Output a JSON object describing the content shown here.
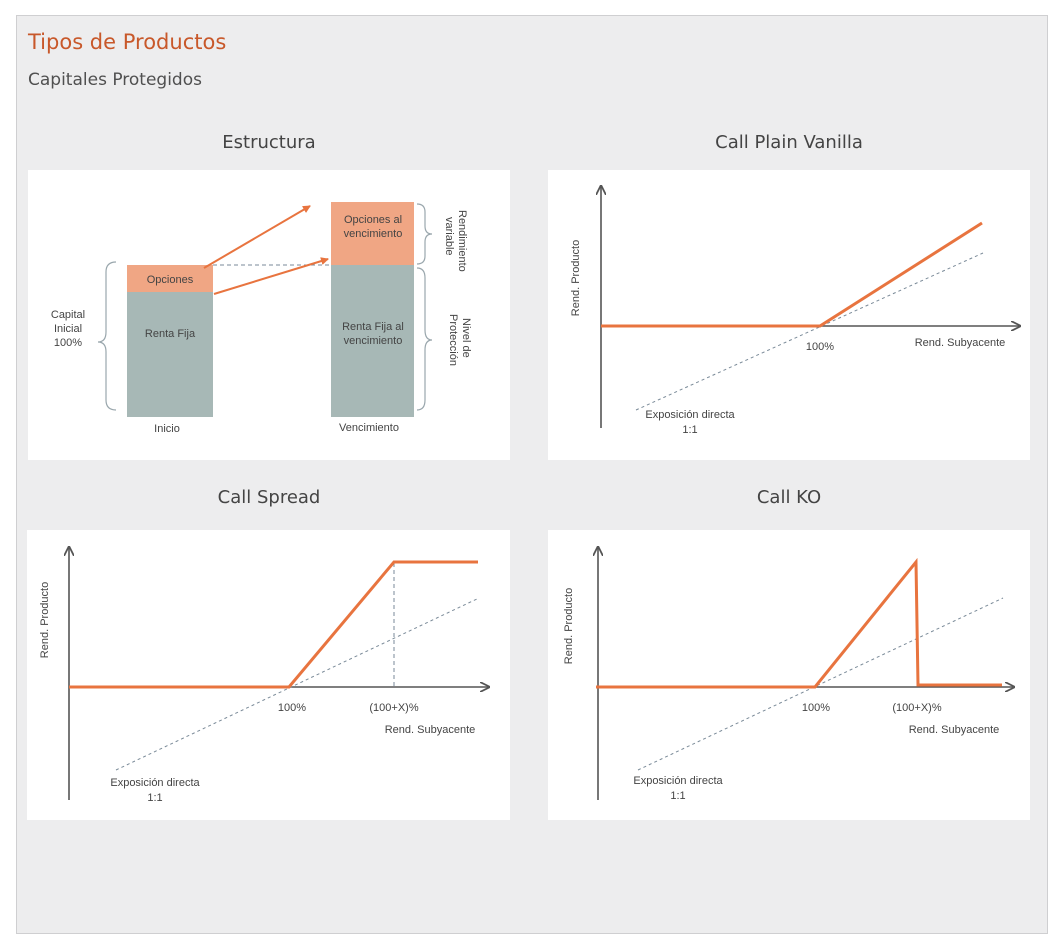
{
  "header": {
    "title": "Tipos de Productos",
    "subtitle": "Capitales Protegidos"
  },
  "colors": {
    "accent": "#e8743f",
    "orange_box": "#f0a684",
    "grey_box": "#a7b8b6",
    "axis": "#555555",
    "dashed": "#7a8a98"
  },
  "panels": {
    "estructura": {
      "title": "Estructura",
      "capital_label": [
        "Capital",
        "Inicial",
        "100%"
      ],
      "opciones": "Opciones",
      "renta_fija": "Renta Fija",
      "opciones_venc": [
        "Opciones al",
        "vencimiento"
      ],
      "renta_fija_venc": [
        "Renta Fija al",
        "vencimiento"
      ],
      "rendimiento_variable": [
        "Rendimiento",
        "variable"
      ],
      "nivel_proteccion": [
        "Nivel de",
        "Protección"
      ],
      "inicio": "Inicio",
      "vencimiento": "Vencimiento"
    },
    "plain_vanilla": {
      "title": "Call Plain Vanilla",
      "ylabel": "Rend. Producto",
      "xlabel": "Rend. Subyacente",
      "strike": "100%",
      "exposure": [
        "Exposición directa",
        "1:1"
      ]
    },
    "call_spread": {
      "title": "Call Spread",
      "ylabel": "Rend. Producto",
      "xlabel": "Rend. Subyacente",
      "strike": "100%",
      "cap": "(100+X)%",
      "exposure": [
        "Exposición directa",
        "1:1"
      ]
    },
    "call_ko": {
      "title": "Call KO",
      "ylabel": "Rend. Producto",
      "xlabel": "Rend. Subyacente",
      "strike": "100%",
      "barrier": "(100+X)%",
      "exposure": [
        "Exposición directa",
        "1:1"
      ]
    }
  }
}
